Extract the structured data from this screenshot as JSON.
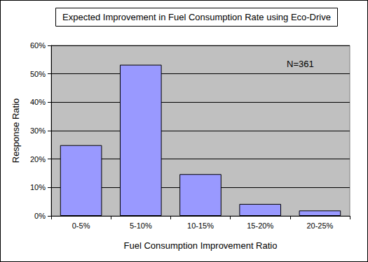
{
  "chart_data": {
    "type": "bar",
    "title": "Expected Improvement in Fuel Consumption Rate using Eco-Drive",
    "x_label": "Fuel Consumption Improvement Ratio",
    "y_label": "Response Ratio",
    "annotation": "N=361",
    "categories": [
      "0-5%",
      "5-10%",
      "10-15%",
      "15-20%",
      "20-25%"
    ],
    "values": [
      24.9,
      53.2,
      14.7,
      4.2,
      1.9
    ],
    "color": "#9999ff",
    "ylim": [
      0,
      60
    ],
    "yticks": [
      {
        "value": 0,
        "label": "0%"
      },
      {
        "value": 10,
        "label": "10%"
      },
      {
        "value": 20,
        "label": "20%"
      },
      {
        "value": 30,
        "label": "30%"
      },
      {
        "value": 40,
        "label": "40%"
      },
      {
        "value": 50,
        "label": "50%"
      },
      {
        "value": 60,
        "label": "60%"
      }
    ],
    "grid": true
  }
}
